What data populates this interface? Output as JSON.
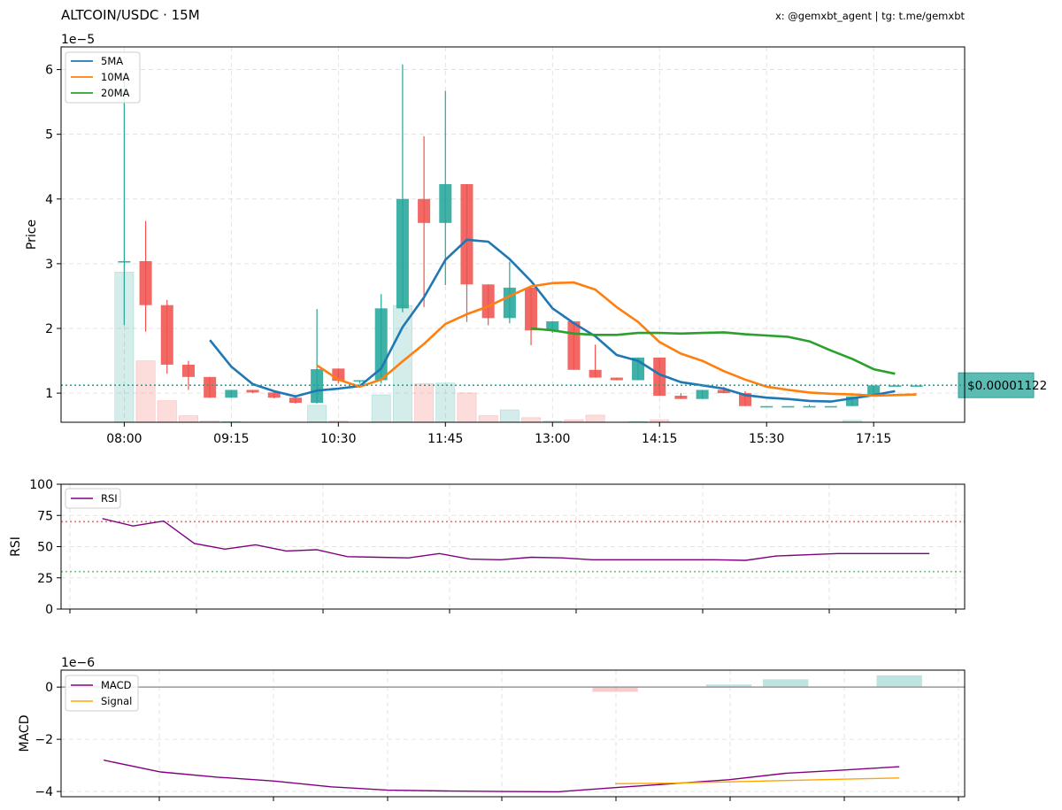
{
  "header": {
    "title": "ALTCOIN/USDC · 15M",
    "credit": "x: @gemxbt_agent | tg: t.me/gemxbt"
  },
  "colors": {
    "up": "#26a69a",
    "down": "#ef5350",
    "ma5": "#1f77b4",
    "ma10": "#ff7f0e",
    "ma20": "#2ca02c",
    "rsi": "#800080",
    "macd": "#800080",
    "signal": "#ffa500",
    "overbought": "#ff0000",
    "oversold": "#00aa00",
    "price_tag": "#26a69a"
  },
  "chart_data": [
    {
      "panel": "price",
      "type": "candlestick",
      "ylabel": "Price",
      "y_multiplier": "1e−5",
      "ylim": [
        0.55,
        6.35
      ],
      "y_ticks": [
        1,
        2,
        3,
        4,
        5,
        6
      ],
      "x_tick_labels": [
        "08:00",
        "09:15",
        "10:30",
        "11:45",
        "13:00",
        "14:15",
        "15:30",
        "17:15"
      ],
      "x_tick_index": [
        0,
        5,
        10,
        15,
        20,
        25,
        30,
        35
      ],
      "grid": true,
      "legend_position": "upper-left",
      "legend": [
        "5MA",
        "10MA",
        "20MA"
      ],
      "last_price_label": "$0.00001122",
      "last_price": 1.122,
      "candles": [
        {
          "o": 3.03,
          "h": 5.85,
          "l": 2.05,
          "c": 3.04,
          "v": 2.3
        },
        {
          "o": 3.04,
          "h": 3.66,
          "l": 1.95,
          "c": 2.36,
          "v": 0.94
        },
        {
          "o": 2.36,
          "h": 2.44,
          "l": 1.3,
          "c": 1.44,
          "v": 0.33
        },
        {
          "o": 1.44,
          "h": 1.5,
          "l": 1.05,
          "c": 1.25,
          "v": 0.1
        },
        {
          "o": 1.25,
          "h": 1.25,
          "l": 0.93,
          "c": 0.93,
          "v": 0.02
        },
        {
          "o": 0.93,
          "h": 1.05,
          "l": 0.93,
          "c": 1.05,
          "v": 0.01
        },
        {
          "o": 1.05,
          "h": 1.05,
          "l": 1.0,
          "c": 1.01,
          "v": 0.0
        },
        {
          "o": 1.01,
          "h": 1.04,
          "l": 0.92,
          "c": 0.93,
          "v": 0.0
        },
        {
          "o": 0.93,
          "h": 0.96,
          "l": 0.84,
          "c": 0.85,
          "v": 0.0
        },
        {
          "o": 0.85,
          "h": 2.3,
          "l": 0.84,
          "c": 1.37,
          "v": 0.26
        },
        {
          "o": 1.38,
          "h": 1.38,
          "l": 1.15,
          "c": 1.19,
          "v": 0.02
        },
        {
          "o": 1.19,
          "h": 1.2,
          "l": 1.15,
          "c": 1.2,
          "v": 0.0
        },
        {
          "o": 1.2,
          "h": 2.53,
          "l": 1.15,
          "c": 2.31,
          "v": 0.42
        },
        {
          "o": 2.31,
          "h": 6.08,
          "l": 2.25,
          "c": 4.0,
          "v": 1.79
        },
        {
          "o": 4.0,
          "h": 4.97,
          "l": 2.33,
          "c": 3.63,
          "v": 0.59
        },
        {
          "o": 3.63,
          "h": 5.67,
          "l": 2.67,
          "c": 4.23,
          "v": 0.6
        },
        {
          "o": 4.23,
          "h": 4.23,
          "l": 2.1,
          "c": 2.68,
          "v": 0.45
        },
        {
          "o": 2.68,
          "h": 2.68,
          "l": 2.05,
          "c": 2.16,
          "v": 0.1
        },
        {
          "o": 2.16,
          "h": 3.03,
          "l": 2.08,
          "c": 2.63,
          "v": 0.19
        },
        {
          "o": 2.63,
          "h": 2.63,
          "l": 1.74,
          "c": 1.97,
          "v": 0.07
        },
        {
          "o": 1.97,
          "h": 2.11,
          "l": 1.93,
          "c": 2.11,
          "v": 0.02
        },
        {
          "o": 2.11,
          "h": 2.11,
          "l": 1.36,
          "c": 1.36,
          "v": 0.04
        },
        {
          "o": 1.36,
          "h": 1.75,
          "l": 1.24,
          "c": 1.24,
          "v": 0.11
        },
        {
          "o": 1.24,
          "h": 1.24,
          "l": 1.2,
          "c": 1.2,
          "v": 0.0
        },
        {
          "o": 1.2,
          "h": 1.55,
          "l": 1.2,
          "c": 1.55,
          "v": 0.01
        },
        {
          "o": 1.55,
          "h": 1.55,
          "l": 0.96,
          "c": 0.96,
          "v": 0.04
        },
        {
          "o": 0.96,
          "h": 1.0,
          "l": 0.91,
          "c": 0.91,
          "v": 0.0
        },
        {
          "o": 0.91,
          "h": 1.05,
          "l": 0.91,
          "c": 1.05,
          "v": 0.0
        },
        {
          "o": 1.05,
          "h": 1.1,
          "l": 1.0,
          "c": 1.0,
          "v": 0.0
        },
        {
          "o": 1.0,
          "h": 1.03,
          "l": 0.8,
          "c": 0.8,
          "v": 0.0
        },
        {
          "o": 0.8,
          "h": 0.8,
          "l": 0.8,
          "c": 0.8,
          "v": 0.0
        },
        {
          "o": 0.8,
          "h": 0.8,
          "l": 0.8,
          "c": 0.8,
          "v": 0.0
        },
        {
          "o": 0.8,
          "h": 0.82,
          "l": 0.8,
          "c": 0.8,
          "v": 0.0
        },
        {
          "o": 0.8,
          "h": 0.8,
          "l": 0.8,
          "c": 0.8,
          "v": 0.0
        },
        {
          "o": 0.8,
          "h": 0.95,
          "l": 0.8,
          "c": 0.95,
          "v": 0.03
        },
        {
          "o": 0.95,
          "h": 1.12,
          "l": 0.95,
          "c": 1.12,
          "v": 0.0
        },
        {
          "o": 1.12,
          "h": 1.13,
          "l": 1.12,
          "c": 1.12,
          "v": 0.0
        },
        {
          "o": 1.12,
          "h": 1.13,
          "l": 1.12,
          "c": 1.12,
          "v": 0.0
        }
      ],
      "series": [
        {
          "name": "5MA",
          "start": 4,
          "values": [
            1.82,
            1.41,
            1.14,
            1.03,
            0.95,
            1.04,
            1.07,
            1.11,
            1.38,
            2.02,
            2.48,
            3.06,
            3.37,
            3.34,
            3.07,
            2.73,
            2.31,
            2.08,
            1.88,
            1.59,
            1.5,
            1.29,
            1.17,
            1.12,
            1.07,
            0.97,
            0.93,
            0.91,
            0.88,
            0.87,
            0.92,
            0.97,
            1.03
          ]
        },
        {
          "name": "10MA",
          "start": 9,
          "values": [
            1.43,
            1.21,
            1.1,
            1.21,
            1.49,
            1.76,
            2.07,
            2.22,
            2.34,
            2.5,
            2.65,
            2.7,
            2.71,
            2.6,
            2.33,
            2.1,
            1.79,
            1.61,
            1.5,
            1.34,
            1.21,
            1.1,
            1.05,
            1.01,
            0.99,
            0.98,
            0.96,
            0.97,
            0.98
          ]
        },
        {
          "name": "20MA",
          "start": 19,
          "values": [
            2.0,
            1.97,
            1.92,
            1.9,
            1.9,
            1.93,
            1.93,
            1.92,
            1.93,
            1.94,
            1.91,
            1.89,
            1.87,
            1.8,
            1.66,
            1.53,
            1.37,
            1.3
          ]
        }
      ]
    },
    {
      "panel": "rsi",
      "type": "line",
      "ylabel": "RSI",
      "ylim": [
        0,
        100
      ],
      "y_ticks": [
        0,
        25,
        50,
        75,
        100
      ],
      "overbought": 70,
      "oversold": 30,
      "legend": [
        "RSI"
      ],
      "series": [
        {
          "name": "RSI",
          "values": [
            72.5,
            66.5,
            70.5,
            52.5,
            48.0,
            51.5,
            46.5,
            47.5,
            42.0,
            41.5,
            41.0,
            44.5,
            40.0,
            39.5,
            41.5,
            41.0,
            39.5,
            39.5,
            39.5,
            39.5,
            39.5,
            39.0,
            42.5,
            43.5,
            44.5,
            44.5,
            44.5,
            44.5
          ]
        }
      ]
    },
    {
      "panel": "macd",
      "type": "line+bar",
      "ylabel": "MACD",
      "y_multiplier": "1e−6",
      "ylim": [
        -4.2,
        0.65
      ],
      "y_ticks": [
        -4,
        -2,
        0
      ],
      "legend": [
        "MACD",
        "Signal"
      ],
      "series": [
        {
          "name": "MACD",
          "values": [
            -2.8,
            -3.25,
            -3.45,
            -3.6,
            -3.82,
            -3.95,
            -3.98,
            -4.0,
            -4.01,
            -3.85,
            -3.7,
            -3.55,
            -3.3,
            -3.18,
            -3.05
          ]
        },
        {
          "name": "Signal",
          "start": 9,
          "values": [
            -3.7,
            -3.68,
            -3.63,
            -3.58,
            -3.53,
            -3.48
          ]
        }
      ],
      "histogram": [
        0,
        0,
        0,
        0,
        0,
        0,
        0,
        0,
        0,
        -0.18,
        0,
        0.1,
        0.3,
        0,
        0.45
      ]
    }
  ]
}
